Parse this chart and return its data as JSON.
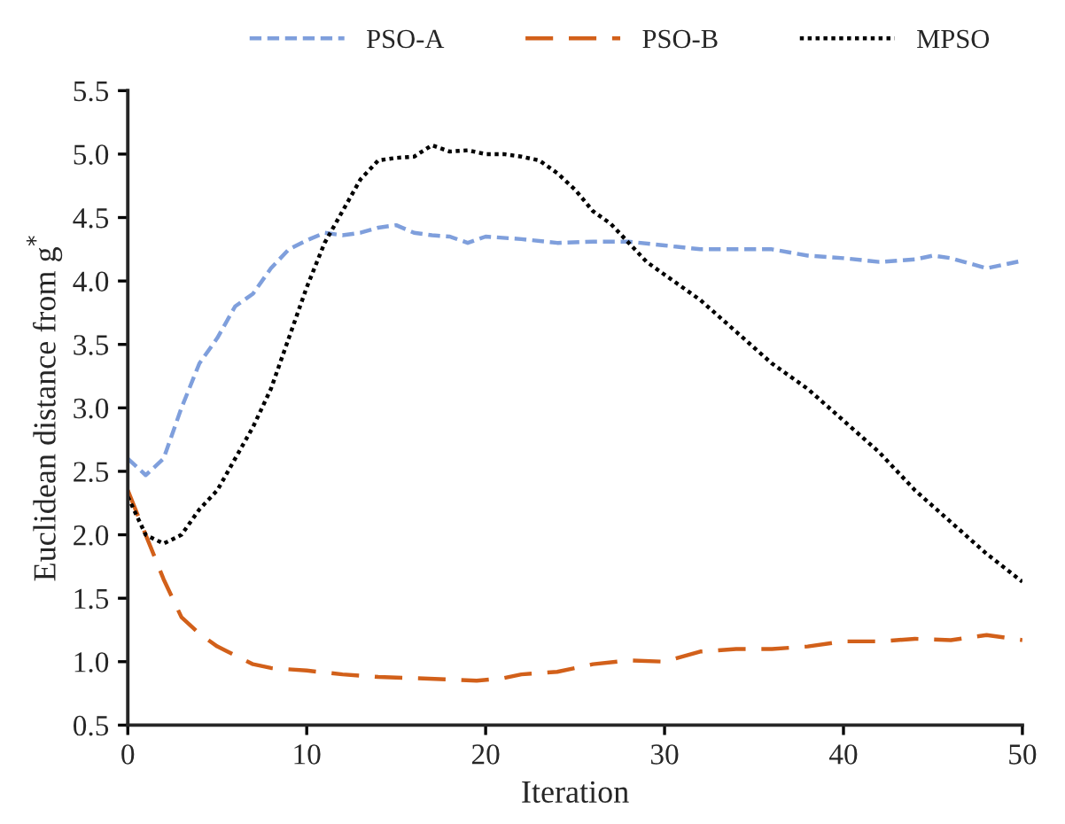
{
  "chart_data": {
    "type": "line",
    "xlabel": "Iteration",
    "ylabel": "Euclidean distance from g$^{*}$",
    "xlim": [
      0,
      50
    ],
    "xticks": [
      0,
      10,
      20,
      30,
      40,
      50
    ],
    "ylim": [
      0.5,
      5.5
    ],
    "yticks": [
      {
        "value": 0.5,
        "label": "0.5"
      },
      {
        "value": 1.0,
        "label": "1.0"
      },
      {
        "value": 1.5,
        "label": "1.5"
      },
      {
        "value": 2.0,
        "label": "2.0"
      },
      {
        "value": 2.5,
        "label": "2.5"
      },
      {
        "value": 3.0,
        "label": "3.0"
      },
      {
        "value": 3.5,
        "label": "3.5"
      },
      {
        "value": 4.0,
        "label": "4.0"
      },
      {
        "value": 4.5,
        "label": "4.5"
      },
      {
        "value": 5.0,
        "label": "5.0"
      },
      {
        "value": 5.5,
        "label": "5.5"
      }
    ],
    "grid": false,
    "legend": "top",
    "marker": "none",
    "series": [
      {
        "name": "PSO-A",
        "color": "#7f9fdc",
        "line_style": "dashed",
        "x": [
          0,
          1,
          2,
          3,
          4,
          5,
          6,
          7,
          8,
          9,
          10,
          11,
          12,
          13,
          14,
          15,
          16,
          17,
          18,
          19,
          20,
          22,
          24,
          26,
          28,
          30,
          32,
          34,
          36,
          38,
          40,
          42,
          44,
          45,
          46,
          48,
          50
        ],
        "values": [
          2.6,
          2.47,
          2.6,
          3.0,
          3.35,
          3.55,
          3.8,
          3.9,
          4.1,
          4.25,
          4.32,
          4.38,
          4.36,
          4.38,
          4.42,
          4.44,
          4.38,
          4.36,
          4.35,
          4.3,
          4.35,
          4.33,
          4.3,
          4.31,
          4.31,
          4.28,
          4.25,
          4.25,
          4.25,
          4.2,
          4.18,
          4.15,
          4.17,
          4.2,
          4.18,
          4.1,
          4.16
        ]
      },
      {
        "name": "PSO-B",
        "color": "#d2601a",
        "line_style": "longdash",
        "x": [
          0,
          1,
          2,
          3,
          4,
          5,
          6,
          7,
          8,
          10,
          12,
          14,
          16,
          18,
          19.5,
          21,
          22,
          24,
          26,
          28,
          30,
          32,
          34,
          36,
          38,
          40,
          42,
          44,
          46,
          48,
          50
        ],
        "values": [
          2.35,
          2.0,
          1.65,
          1.35,
          1.22,
          1.12,
          1.05,
          0.98,
          0.95,
          0.93,
          0.9,
          0.88,
          0.87,
          0.86,
          0.85,
          0.87,
          0.9,
          0.92,
          0.98,
          1.01,
          1.0,
          1.08,
          1.1,
          1.1,
          1.12,
          1.16,
          1.16,
          1.18,
          1.17,
          1.21,
          1.17
        ]
      },
      {
        "name": "MPSO",
        "color": "#000000",
        "line_style": "dotted",
        "x": [
          0,
          1,
          2,
          3,
          4,
          5,
          6,
          7,
          8,
          9,
          10,
          11,
          12,
          13,
          14,
          15,
          16,
          17,
          18,
          19,
          20,
          21,
          22,
          23,
          24,
          25,
          26,
          27,
          28,
          29,
          30,
          31,
          32,
          34,
          36,
          38,
          40,
          42,
          44,
          46,
          48,
          50
        ],
        "values": [
          2.3,
          2.0,
          1.93,
          2.0,
          2.2,
          2.35,
          2.6,
          2.85,
          3.15,
          3.55,
          3.95,
          4.3,
          4.55,
          4.8,
          4.95,
          4.97,
          4.98,
          5.07,
          5.02,
          5.03,
          5.0,
          5.0,
          4.98,
          4.95,
          4.85,
          4.72,
          4.55,
          4.45,
          4.3,
          4.15,
          4.05,
          3.95,
          3.85,
          3.6,
          3.35,
          3.15,
          2.9,
          2.65,
          2.35,
          2.1,
          1.85,
          1.63
        ]
      }
    ]
  }
}
